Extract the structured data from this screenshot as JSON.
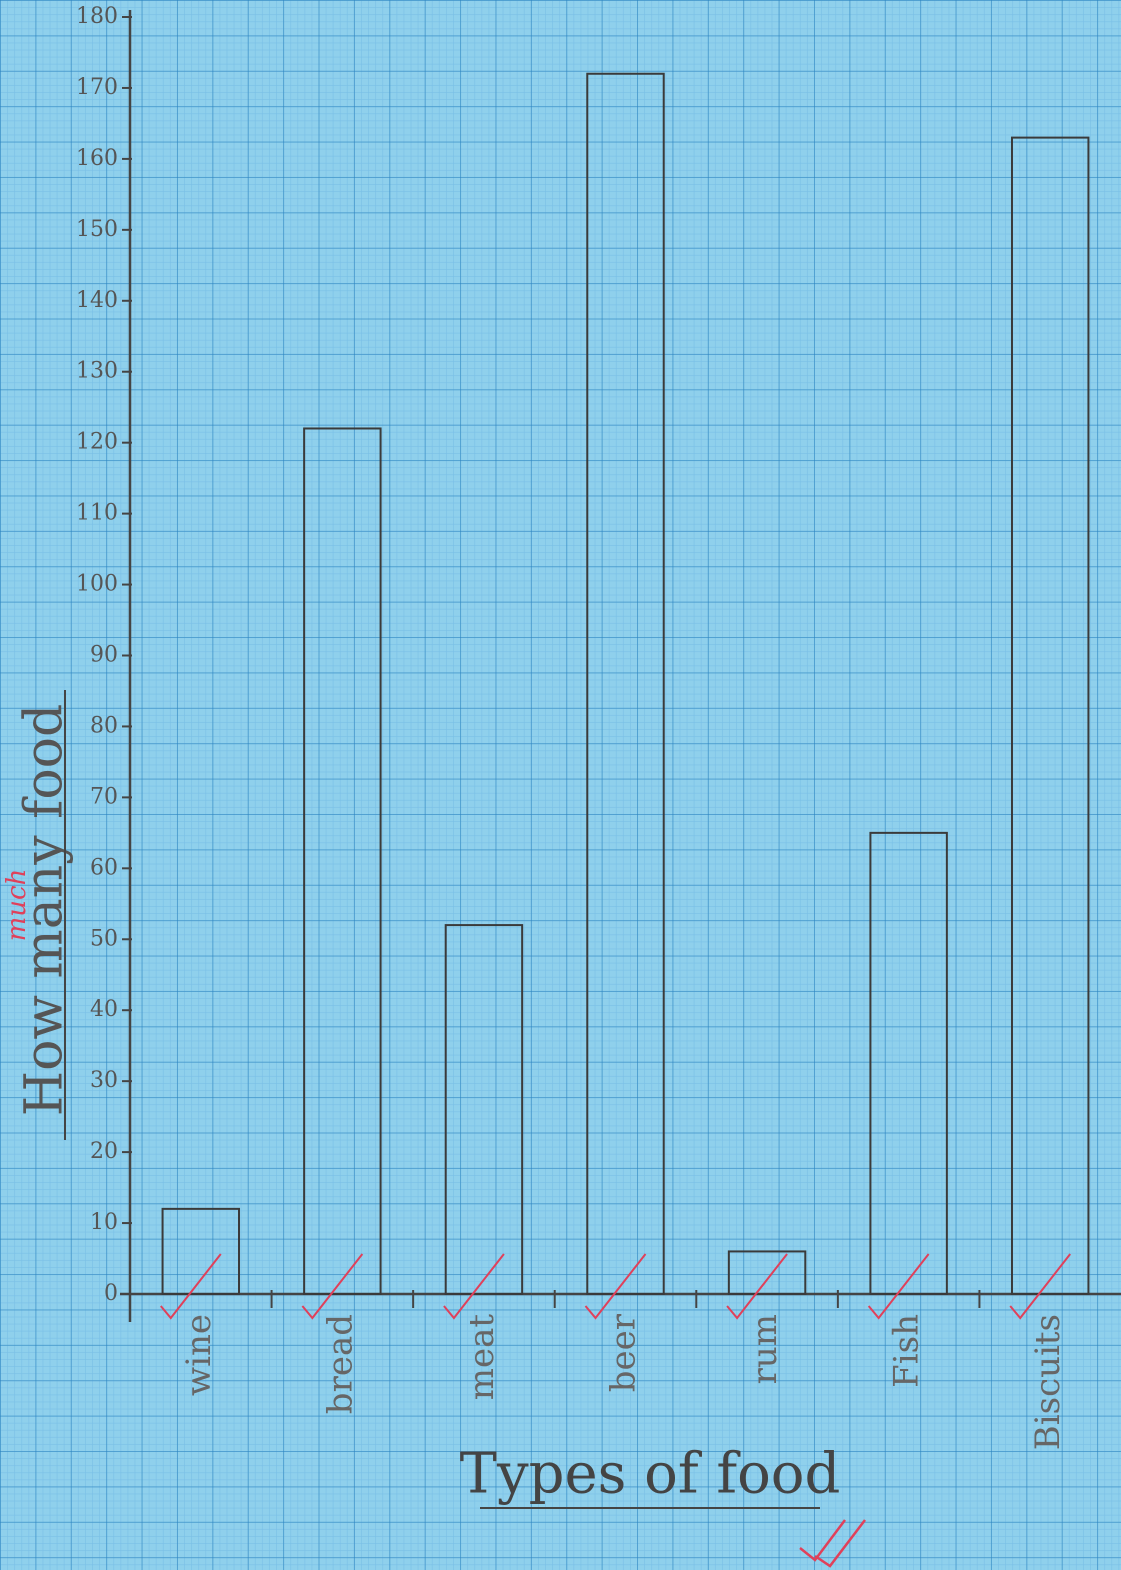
{
  "chart_data": {
    "type": "bar",
    "x_label": "Types of food",
    "y_label": "How many food",
    "y_label_correction": "much",
    "categories": [
      "wine",
      "bread",
      "meat",
      "beer",
      "rum",
      "Fish",
      "Biscuits"
    ],
    "values": [
      12,
      122,
      52,
      172,
      6,
      65,
      163
    ],
    "color": "#3a3a3a",
    "ylim": [
      0,
      180
    ],
    "yticks": [
      0,
      10,
      20,
      30,
      40,
      50,
      60,
      70,
      80,
      90,
      100,
      110,
      120,
      130,
      140,
      150,
      160,
      170,
      180
    ]
  }
}
